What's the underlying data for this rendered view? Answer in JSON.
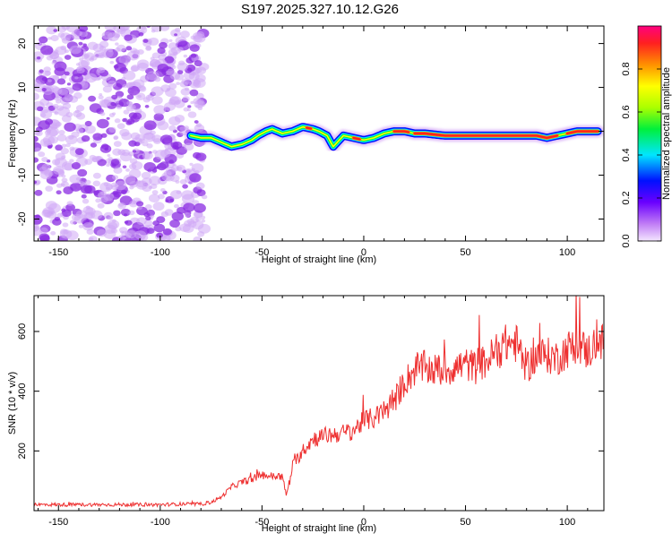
{
  "title": "S197.2025.327.10.12.G26",
  "colors": {
    "snr_line": "#ee3030",
    "scatter_core": "#8a2be2",
    "scatter_light": "#cfa8f5"
  },
  "chart_data": [
    {
      "type": "heatmap",
      "name": "spectrogram",
      "xlabel": "Height of straight line (km)",
      "ylabel": "Frequency (Hz)",
      "xlim": [
        -162,
        118
      ],
      "ylim": [
        -25,
        24
      ],
      "xticks": [
        -150,
        -100,
        -50,
        0,
        50,
        100
      ],
      "yticks": [
        -20,
        -10,
        0,
        10,
        20
      ],
      "noise_region_x": [
        -162,
        -78
      ],
      "ridge": {
        "x": [
          -85,
          -80,
          -75,
          -70,
          -65,
          -60,
          -55,
          -52,
          -48,
          -45,
          -40,
          -35,
          -30,
          -25,
          -22,
          -18,
          -15,
          -12,
          -10,
          -5,
          0,
          5,
          10,
          15,
          20,
          25,
          30,
          40,
          50,
          60,
          70,
          80,
          85,
          90,
          95,
          100,
          105,
          110,
          115
        ],
        "y": [
          -1,
          -1.5,
          -1.5,
          -2.5,
          -3.5,
          -3,
          -2,
          -1,
          0,
          0.5,
          -0.5,
          0,
          1,
          0.5,
          0,
          -1,
          -3.5,
          -2,
          -1,
          -1.5,
          -2,
          -1.5,
          -0.5,
          0,
          0,
          -0.5,
          -0.5,
          -1,
          -1,
          -1,
          -1,
          -1,
          -1,
          -1.5,
          -1,
          -0.5,
          0,
          0,
          0
        ]
      },
      "colorbar": {
        "label": "Normalized spectral amplitude",
        "ticks": [
          0.0,
          0.2,
          0.4,
          0.6,
          0.8
        ],
        "tick_labels": [
          "0.0",
          "0.2",
          "0.4",
          "0.6",
          "0.8"
        ],
        "range": [
          0,
          1
        ]
      }
    },
    {
      "type": "line",
      "name": "snr",
      "xlabel": "Height of straight line (km)",
      "ylabel": "SNR (10 * v/v)",
      "xlim": [
        -162,
        118
      ],
      "ylim": [
        0,
        720
      ],
      "xticks": [
        -150,
        -100,
        -50,
        0,
        50,
        100
      ],
      "yticks": [
        200,
        400,
        600
      ],
      "series": [
        {
          "name": "SNR",
          "x": [
            -162,
            -140,
            -120,
            -100,
            -90,
            -80,
            -75,
            -70,
            -65,
            -60,
            -55,
            -50,
            -45,
            -40,
            -38,
            -35,
            -30,
            -25,
            -20,
            -15,
            -10,
            -5,
            0,
            5,
            10,
            15,
            20,
            25,
            30,
            35,
            40,
            45,
            50,
            55,
            60,
            65,
            70,
            75,
            80,
            85,
            90,
            95,
            100,
            105,
            110,
            115,
            118
          ],
          "values": [
            20,
            20,
            20,
            20,
            22,
            22,
            28,
            45,
            80,
            95,
            105,
            120,
            115,
            115,
            50,
            150,
            200,
            240,
            250,
            255,
            260,
            270,
            300,
            310,
            330,
            370,
            430,
            470,
            480,
            470,
            470,
            480,
            490,
            480,
            500,
            530,
            560,
            560,
            480,
            520,
            520,
            510,
            540,
            560,
            530,
            570,
            560
          ]
        }
      ]
    }
  ]
}
